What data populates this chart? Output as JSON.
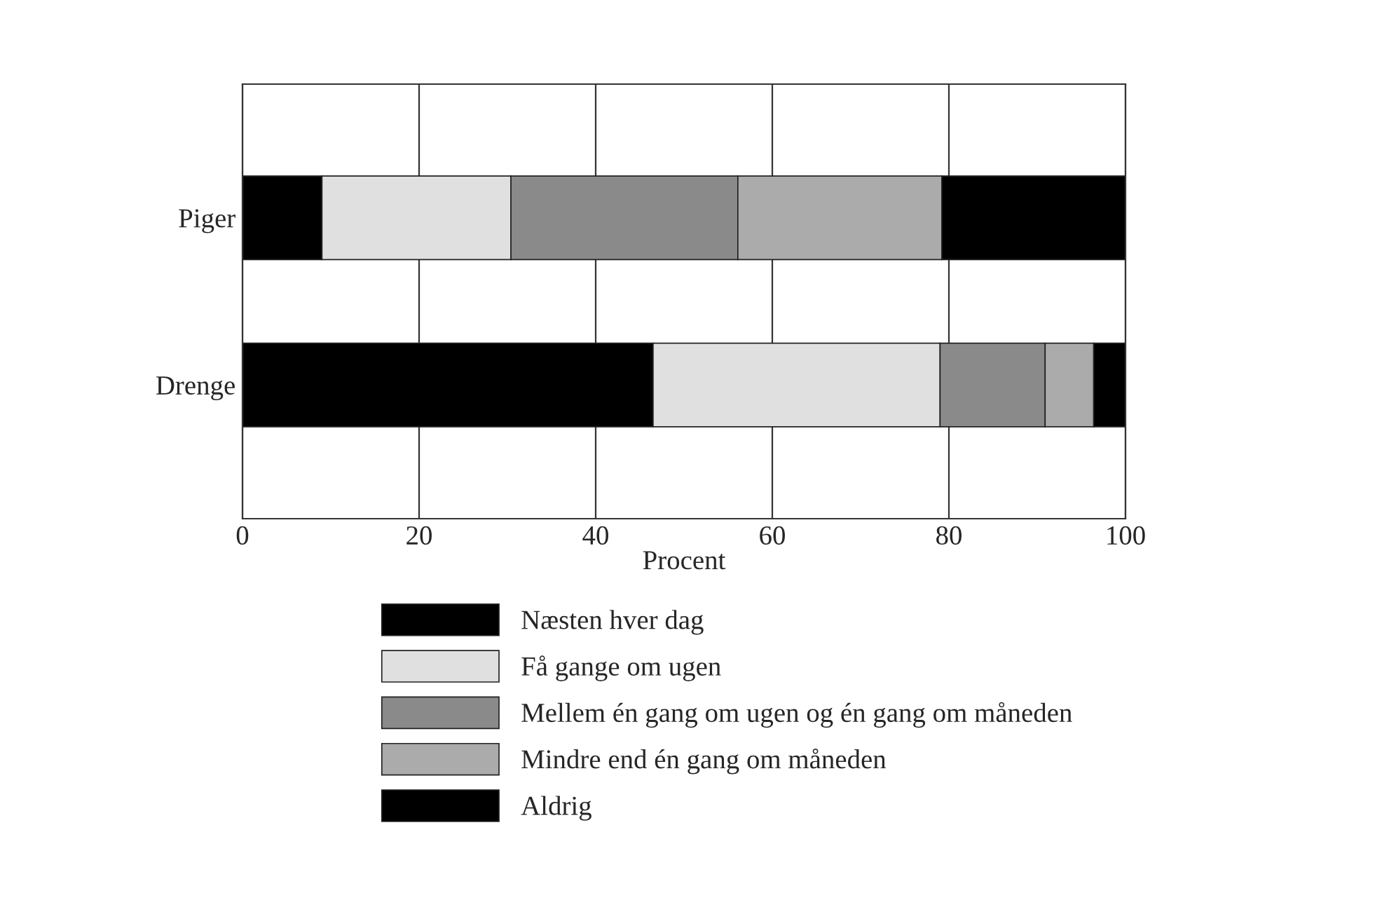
{
  "chart_data": {
    "type": "bar",
    "orientation": "horizontal",
    "stacked": true,
    "xlabel": "Procent",
    "categories": [
      "Piger",
      "Drenge"
    ],
    "series": [
      {
        "name": "Næsten hver dag",
        "color": "#000000",
        "values": [
          9.0,
          46.5
        ]
      },
      {
        "name": "Få gange om ugen",
        "color": "#e0e0e0",
        "values": [
          21.4,
          32.5
        ]
      },
      {
        "name": "Mellem én gang om ugen og én gang om måneden",
        "color": "#8a8a8a",
        "values": [
          25.7,
          11.9
        ]
      },
      {
        "name": "Mindre end én gang om måneden",
        "color": "#ababab",
        "values": [
          23.1,
          5.5
        ]
      },
      {
        "name": "Aldrig",
        "color": "#000000",
        "values": [
          20.8,
          3.6
        ]
      }
    ],
    "xlim": [
      0,
      100
    ],
    "xticks": [
      0,
      20,
      40,
      60,
      80,
      100
    ],
    "grid": "x",
    "legend": "bottom"
  }
}
